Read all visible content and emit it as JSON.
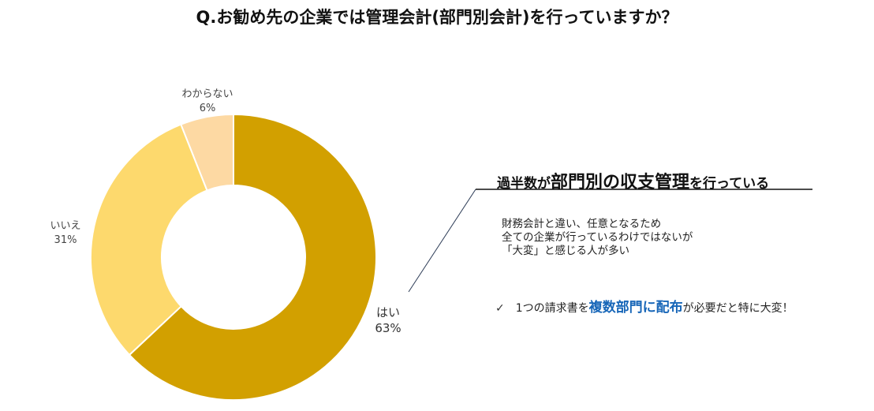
{
  "title": "Q.お勧め先の企業では管理会計(部門別会計)を行っていますか？",
  "chart_data": {
    "type": "pie",
    "donut": true,
    "categories": [
      "はい",
      "いいえ",
      "わからない"
    ],
    "values": [
      63,
      31,
      6
    ],
    "value_labels": [
      "63%",
      "31%",
      "6%"
    ],
    "colors": [
      "#d2a000",
      "#fdd96d",
      "#fdd9a3"
    ]
  },
  "callout": {
    "pre": "過半数が",
    "emph": "部門別の収支管理",
    "post": "を行っている"
  },
  "description": [
    "財務会計と違い、任意となるため",
    "全ての企業が行っているわけではないが",
    "「大変」と感じる人が多い"
  ],
  "bullet": {
    "mark": "✓",
    "pre": "1つの請求書を",
    "emph": "複数部門に配布",
    "post": "が必要だと特に大変！"
  }
}
